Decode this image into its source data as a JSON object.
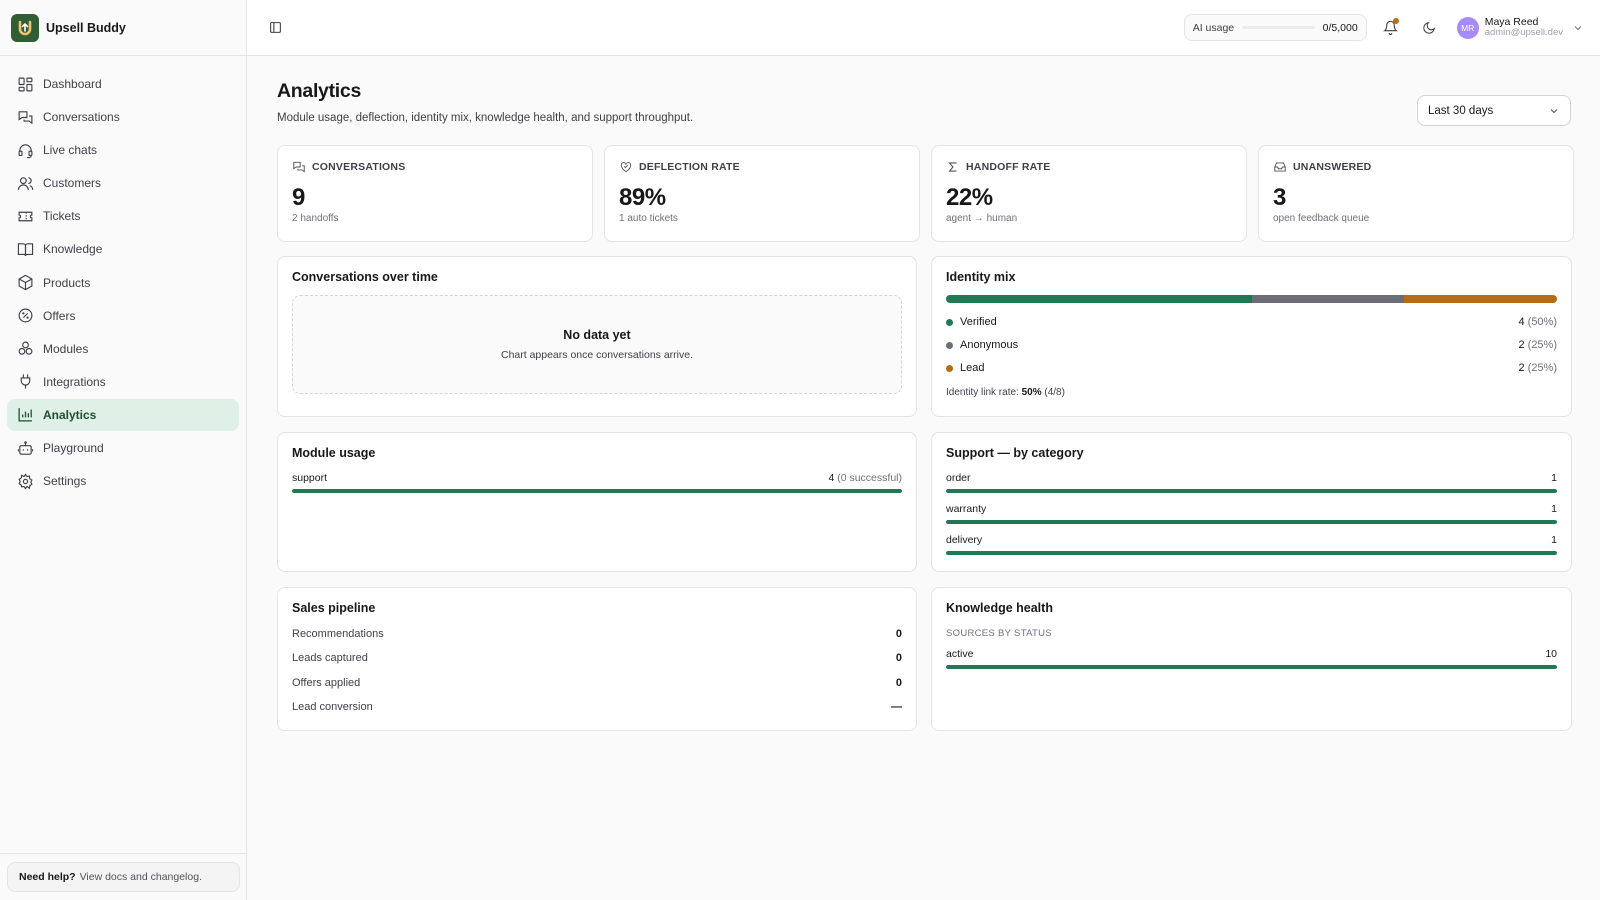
{
  "app": {
    "name": "Upsell Buddy"
  },
  "sidebar": {
    "items": [
      {
        "label": "Dashboard",
        "icon": "dashboard-icon"
      },
      {
        "label": "Conversations",
        "icon": "conversations-icon"
      },
      {
        "label": "Live chats",
        "icon": "headset-icon"
      },
      {
        "label": "Customers",
        "icon": "users-icon"
      },
      {
        "label": "Tickets",
        "icon": "ticket-icon"
      },
      {
        "label": "Knowledge",
        "icon": "book-icon"
      },
      {
        "label": "Products",
        "icon": "box-icon"
      },
      {
        "label": "Offers",
        "icon": "percent-icon"
      },
      {
        "label": "Modules",
        "icon": "modules-icon"
      },
      {
        "label": "Integrations",
        "icon": "plug-icon"
      },
      {
        "label": "Analytics",
        "icon": "chart-icon",
        "active": true
      },
      {
        "label": "Playground",
        "icon": "bot-icon"
      },
      {
        "label": "Settings",
        "icon": "gear-icon"
      }
    ],
    "help": {
      "title": "Need help?",
      "text": "View docs and changelog."
    }
  },
  "header": {
    "ai_usage": {
      "label": "AI usage",
      "value": "0/5,000",
      "fraction": 0
    },
    "user": {
      "initials": "MR",
      "name": "Maya Reed",
      "email": "admin@upsell.dev"
    }
  },
  "page": {
    "title": "Analytics",
    "subtitle": "Module usage, deflection, identity mix, knowledge health, and support throughput.",
    "range": "Last 30 days"
  },
  "stats": [
    {
      "label": "CONVERSATIONS",
      "value": "9",
      "hint": "2 handoffs"
    },
    {
      "label": "DEFLECTION RATE",
      "value": "89%",
      "hint": "1 auto tickets"
    },
    {
      "label": "HANDOFF RATE",
      "value": "22%",
      "hint": "agent → human"
    },
    {
      "label": "UNANSWERED",
      "value": "3",
      "hint": "open feedback queue"
    }
  ],
  "conversations_over_time": {
    "title": "Conversations over time",
    "empty_title": "No data yet",
    "empty_text": "Chart appears once conversations arrive."
  },
  "identity_mix": {
    "title": "Identity mix",
    "items": [
      {
        "label": "Verified",
        "count": "4",
        "pct": "(50%)",
        "share": 0.5,
        "color": "#1f7a54"
      },
      {
        "label": "Anonymous",
        "count": "2",
        "pct": "(25%)",
        "share": 0.25,
        "color": "#6b6e76"
      },
      {
        "label": "Lead",
        "count": "2",
        "pct": "(25%)",
        "share": 0.25,
        "color": "#b86b14"
      }
    ],
    "link_rate_label": "Identity link rate:",
    "link_rate_value": "50%",
    "link_rate_detail": "(4/8)"
  },
  "module_usage": {
    "title": "Module usage",
    "items": [
      {
        "label": "support",
        "count": "4",
        "detail": "(0 successful)",
        "fraction": 1
      }
    ]
  },
  "support_by_category": {
    "title": "Support — by category",
    "items": [
      {
        "label": "order",
        "value": "1",
        "fraction": 1
      },
      {
        "label": "warranty",
        "value": "1",
        "fraction": 1
      },
      {
        "label": "delivery",
        "value": "1",
        "fraction": 1
      }
    ]
  },
  "sales_pipeline": {
    "title": "Sales pipeline",
    "items": [
      {
        "label": "Recommendations",
        "value": "0"
      },
      {
        "label": "Leads captured",
        "value": "0"
      },
      {
        "label": "Offers applied",
        "value": "0"
      },
      {
        "label": "Lead conversion",
        "value": "—"
      }
    ]
  },
  "knowledge_health": {
    "title": "Knowledge health",
    "caption": "SOURCES BY STATUS",
    "items": [
      {
        "label": "active",
        "value": "10",
        "fraction": 1
      }
    ]
  },
  "colors": {
    "accent": "#1f7a54",
    "active_nav_bg": "#dff0e6",
    "notification": "#c46c0f"
  }
}
